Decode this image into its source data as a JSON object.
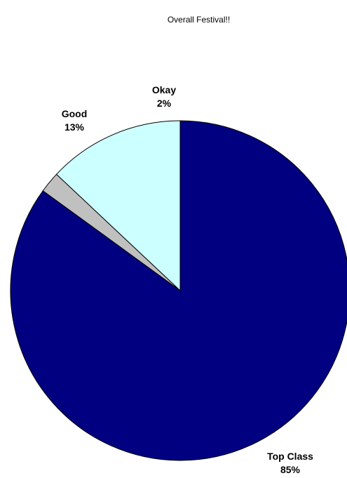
{
  "chart_data": {
    "type": "pie",
    "title": "Overall Festival!!",
    "slices": [
      {
        "label": "Top Class",
        "value": 85,
        "percent_label": "85%",
        "color": "#000080"
      },
      {
        "label": "Okay",
        "value": 2,
        "percent_label": "2%",
        "color": "#C0C0C0"
      },
      {
        "label": "Good",
        "value": 13,
        "percent_label": "13%",
        "color": "#CCFFFF"
      }
    ],
    "start_angle_deg": 0,
    "direction": "clockwise",
    "legend": "none",
    "data_labels": "category and percent"
  }
}
